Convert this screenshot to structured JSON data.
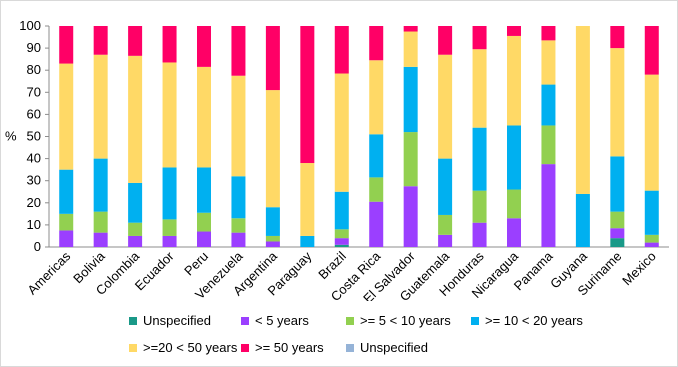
{
  "chart_data": {
    "type": "bar",
    "stacked": true,
    "ylabel": "%",
    "ylim": [
      0,
      100
    ],
    "yticks": [
      0,
      10,
      20,
      30,
      40,
      50,
      60,
      70,
      80,
      90,
      100
    ],
    "grid": false,
    "legend_position": "bottom",
    "categories": [
      "Americas",
      "Bolivia",
      "Colombia",
      "Ecuador",
      "Peru",
      "Venezuela",
      "Argentina",
      "Paraguay",
      "Brazil",
      "Costa Rica",
      "El Salvador",
      "Guatemala",
      "Honduras",
      "Nicaragua",
      "Panama",
      "Guyana",
      "Suriname",
      "Mexico"
    ],
    "series": [
      {
        "name": "Unspecified",
        "color": "#1a9988",
        "values": [
          0,
          0,
          0,
          0,
          0,
          0,
          0,
          0,
          1,
          0,
          0,
          0,
          0,
          0,
          0,
          0,
          4,
          0
        ]
      },
      {
        "name": "< 5  years",
        "color": "#9b3fff",
        "values": [
          7.5,
          6.5,
          5,
          5,
          7,
          6.5,
          2.5,
          0,
          3,
          20.5,
          27.5,
          5.5,
          11,
          13,
          37.5,
          0,
          4.5,
          2
        ]
      },
      {
        "name": ">= 5 < 10  years",
        "color": "#92d050",
        "values": [
          7.5,
          9.5,
          6,
          7.5,
          8.5,
          6.5,
          2.5,
          0,
          4,
          11,
          24.5,
          9,
          14.5,
          13,
          17.5,
          0,
          7.5,
          3.5
        ]
      },
      {
        "name": ">= 10 < 20  years",
        "color": "#00b0f0",
        "values": [
          20,
          24,
          18,
          23.5,
          20.5,
          19,
          13,
          5,
          17,
          19.5,
          29.5,
          25.5,
          28.5,
          29,
          18.5,
          24,
          25,
          20
        ]
      },
      {
        "name": ">=20 < 50  years",
        "color": "#ffd966",
        "values": [
          48,
          47,
          57.5,
          47.5,
          45.5,
          45.5,
          53,
          33,
          53.5,
          33.5,
          16,
          47,
          35.5,
          40.5,
          20,
          76,
          49,
          52.5
        ]
      },
      {
        "name": ">= 50  years",
        "color": "#ff0066",
        "values": [
          17,
          13,
          13.5,
          16.5,
          18.5,
          22.5,
          29,
          62,
          21.5,
          15.5,
          2.5,
          13,
          10.5,
          4.5,
          6.5,
          0,
          10,
          22
        ]
      },
      {
        "name": "Unspecified",
        "color": "#95b3d7",
        "values": [
          0,
          0,
          0,
          0,
          0,
          0,
          0,
          0,
          0,
          0,
          0,
          0,
          0,
          0,
          0,
          0,
          0,
          0
        ]
      }
    ]
  }
}
